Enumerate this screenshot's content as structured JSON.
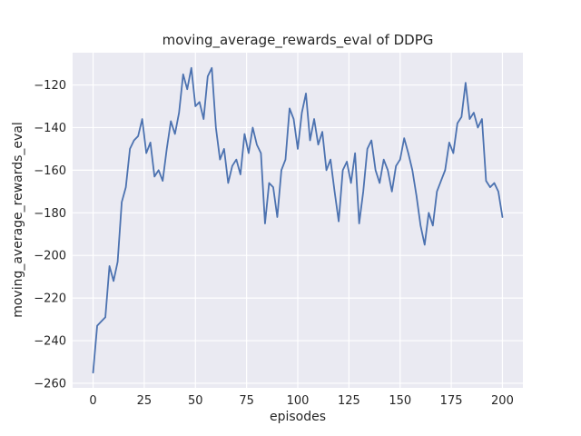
{
  "chart_data": {
    "type": "line",
    "title": "moving_average_rewards_eval of DDPG",
    "xlabel": "episodes",
    "ylabel": "moving_average_rewards_eval",
    "x_ticks": [
      0,
      25,
      50,
      75,
      100,
      125,
      150,
      175,
      200
    ],
    "y_ticks": [
      -260,
      -240,
      -220,
      -200,
      -180,
      -160,
      -140,
      -120
    ],
    "xlim": [
      -10,
      210
    ],
    "ylim": [
      -262.15,
      -104.85
    ],
    "grid": true,
    "legend_position": "none",
    "plot_bg_color": "#eaeaf2",
    "grid_color": "#ffffff",
    "line_color": "#4c72b0",
    "series": [
      {
        "name": "moving_average_rewards_eval",
        "x": [
          0,
          2,
          4,
          6,
          8,
          10,
          12,
          14,
          16,
          18,
          20,
          22,
          24,
          26,
          28,
          30,
          32,
          34,
          36,
          38,
          40,
          42,
          44,
          46,
          48,
          50,
          52,
          54,
          56,
          58,
          60,
          62,
          64,
          66,
          68,
          70,
          72,
          74,
          76,
          78,
          80,
          82,
          84,
          86,
          88,
          90,
          92,
          94,
          96,
          98,
          100,
          102,
          104,
          106,
          108,
          110,
          112,
          114,
          116,
          118,
          120,
          122,
          124,
          126,
          128,
          130,
          132,
          134,
          136,
          138,
          140,
          142,
          144,
          146,
          148,
          150,
          152,
          154,
          156,
          158,
          160,
          162,
          164,
          166,
          168,
          170,
          172,
          174,
          176,
          178,
          180,
          182,
          184,
          186,
          188,
          190,
          192,
          194,
          196,
          198,
          200
        ],
        "y": [
          -255,
          -233,
          -231,
          -229,
          -205,
          -212,
          -203,
          -175,
          -168,
          -150,
          -146,
          -144,
          -136,
          -152,
          -147,
          -163,
          -160,
          -165,
          -150,
          -137,
          -143,
          -133,
          -115,
          -122,
          -112,
          -130,
          -128,
          -136,
          -116,
          -112,
          -140,
          -155,
          -150,
          -166,
          -158,
          -155,
          -162,
          -143,
          -152,
          -140,
          -148,
          -152,
          -185,
          -166,
          -168,
          -182,
          -160,
          -155,
          -131,
          -136,
          -150,
          -133,
          -124,
          -146,
          -136,
          -148,
          -142,
          -160,
          -155,
          -170,
          -184,
          -160,
          -156,
          -166,
          -152,
          -185,
          -170,
          -150,
          -146,
          -160,
          -166,
          -155,
          -160,
          -170,
          -158,
          -155,
          -145,
          -152,
          -160,
          -172,
          -186,
          -195,
          -180,
          -186,
          -170,
          -165,
          -160,
          -147,
          -152,
          -138,
          -135,
          -119,
          -136,
          -133,
          -140,
          -136,
          -165,
          -168,
          -166,
          -170,
          -182
        ]
      }
    ]
  }
}
